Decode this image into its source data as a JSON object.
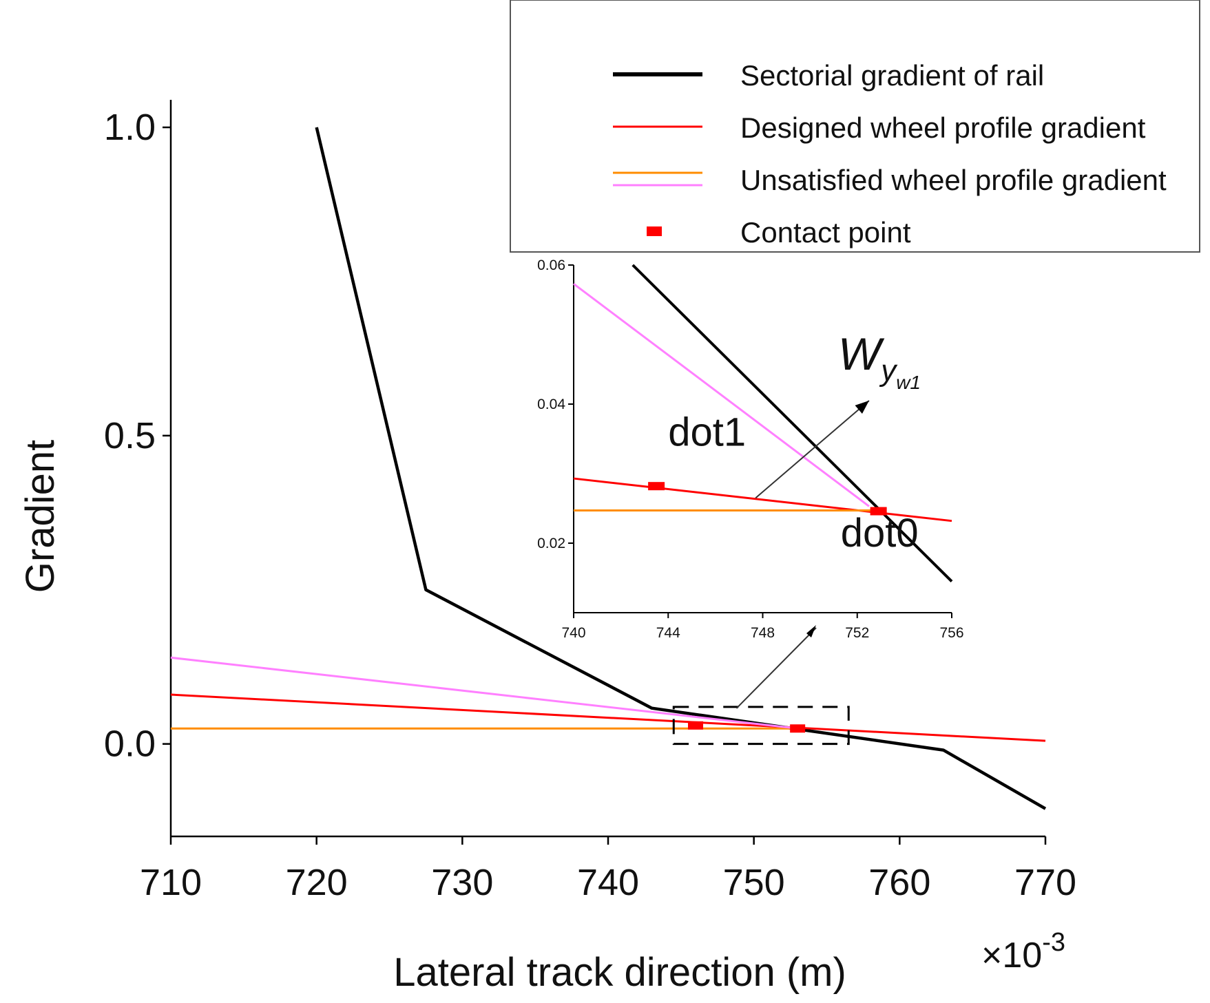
{
  "chart_data": [
    {
      "type": "line",
      "role": "main",
      "xlabel": "Lateral track direction (m)",
      "ylabel": "Gradient",
      "x_multiplier": "×10",
      "x_multiplier_exp": "-3",
      "xlim": [
        710,
        770
      ],
      "ylim": [
        -0.15,
        1.0
      ],
      "xticks": [
        710,
        720,
        730,
        740,
        750,
        760,
        770
      ],
      "yticks": [
        0.0,
        0.5,
        1.0
      ],
      "ytick_labels": [
        "0.0",
        "0.5",
        "1.0"
      ],
      "series": [
        {
          "name": "Sectorial gradient of rail",
          "color": "#000000",
          "x": [
            720,
            727.5,
            743,
            763,
            770
          ],
          "y": [
            1.0,
            0.25,
            0.058,
            -0.01,
            -0.105
          ]
        },
        {
          "name": "Designed wheel profile gradient",
          "color": "#ff0000",
          "x": [
            710,
            770
          ],
          "y": [
            0.08,
            0.005
          ]
        },
        {
          "name": "Unsatisfied wheel profile gradient (orange)",
          "color": "#ff8c00",
          "x": [
            710,
            753
          ],
          "y": [
            0.025,
            0.025
          ]
        },
        {
          "name": "Unsatisfied wheel profile gradient (violet)",
          "color": "#ff80ff",
          "x": [
            710,
            753
          ],
          "y": [
            0.14,
            0.025
          ]
        }
      ],
      "contact_points": {
        "name": "Contact point",
        "color": "#ff0000",
        "x": [
          746,
          753
        ],
        "y": [
          0.03,
          0.025
        ]
      },
      "zoom_box": {
        "x": [
          744.5,
          756.5
        ],
        "y": [
          0.0,
          0.06
        ]
      }
    },
    {
      "type": "line",
      "role": "inset",
      "xlim": [
        740,
        756
      ],
      "ylim": [
        0.01,
        0.06
      ],
      "xticks": [
        740,
        744,
        748,
        752,
        756
      ],
      "yticks": [
        0.02,
        0.04,
        0.06
      ],
      "ytick_labels": [
        "0.02",
        "0.04",
        "0.06"
      ],
      "series": [
        {
          "name": "Sectorial gradient of rail",
          "color": "#000000",
          "x": [
            742.5,
            756
          ],
          "y": [
            0.06,
            0.0145
          ]
        },
        {
          "name": "Designed wheel profile gradient",
          "color": "#ff0000",
          "x": [
            740,
            756
          ],
          "y": [
            0.0293,
            0.0232
          ]
        },
        {
          "name": "Unsatisfied wheel profile gradient (orange)",
          "color": "#ff8c00",
          "x": [
            740,
            753
          ],
          "y": [
            0.0247,
            0.0247
          ]
        },
        {
          "name": "Unsatisfied wheel profile gradient (violet)",
          "color": "#ff80ff",
          "x": [
            740,
            752.5
          ],
          "y": [
            0.0573,
            0.0253
          ]
        }
      ],
      "contact_points": {
        "x": [
          743.5,
          752.9
        ],
        "y": [
          0.0282,
          0.0246
        ]
      },
      "annotations": [
        {
          "text": "dot1",
          "x": 744,
          "y": 0.034
        },
        {
          "text": "dot0",
          "x": 751.3,
          "y": 0.0195
        }
      ],
      "arrow": {
        "from_x": 747.7,
        "from_y": 0.0265,
        "to_x": 752.5,
        "to_y": 0.0405
      },
      "arrow_label": {
        "base": "W",
        "sub": "y",
        "subsub": "w1"
      }
    }
  ],
  "legend": {
    "items": [
      {
        "label": "Sectorial gradient of rail",
        "kind": "line",
        "colors": [
          "#000000"
        ]
      },
      {
        "label": "Designed wheel profile gradient",
        "kind": "line",
        "colors": [
          "#ff0000"
        ]
      },
      {
        "label": "Unsatisfied wheel profile gradient",
        "kind": "line",
        "colors": [
          "#ff8c00",
          "#ff80ff"
        ]
      },
      {
        "label": "Contact point",
        "kind": "marker",
        "colors": [
          "#ff0000"
        ]
      }
    ]
  }
}
